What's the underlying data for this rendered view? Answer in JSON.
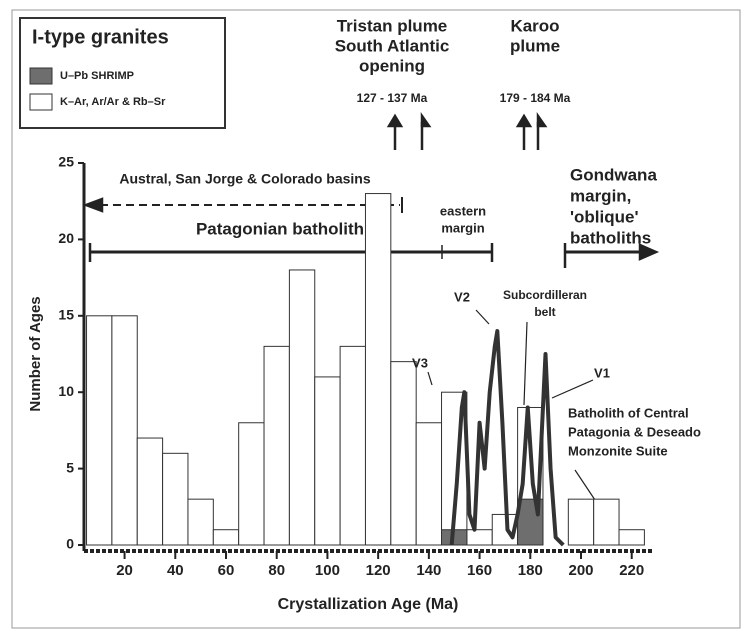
{
  "chart_data": {
    "type": "histogram",
    "legend_title": "I-type granites",
    "xlabel": "Crystallization Age (Ma)",
    "ylabel": "Number of Ages",
    "xlim": [
      4,
      228
    ],
    "ylim": [
      0,
      25
    ],
    "xticks": [
      20,
      40,
      60,
      80,
      100,
      120,
      140,
      160,
      180,
      200,
      220
    ],
    "yticks": [
      0,
      5,
      10,
      15,
      20,
      25
    ],
    "bins": [
      5,
      15,
      25,
      35,
      45,
      55,
      65,
      75,
      85,
      95,
      105,
      115,
      125,
      135,
      145,
      155,
      165,
      175,
      185,
      195,
      205,
      215,
      225
    ],
    "series": [
      {
        "name": "K–Ar, Ar/Ar & Rb–Sr",
        "color": "#ffffff",
        "values": [
          15,
          15,
          7,
          6,
          3,
          1,
          8,
          13,
          18,
          11,
          13,
          23,
          12,
          8,
          10,
          1,
          2,
          9,
          0,
          3,
          3,
          1
        ]
      },
      {
        "name": "U–Pb SHRIMP",
        "color": "#6e6e6e",
        "values": [
          0,
          0,
          0,
          0,
          0,
          0,
          0,
          0,
          0,
          0,
          0,
          0,
          0,
          0,
          1,
          0,
          0,
          3,
          0,
          0,
          0,
          0
        ]
      }
    ],
    "curve": {
      "color": "#333333",
      "x": [
        149,
        151,
        153,
        154,
        156,
        158,
        160,
        162,
        164,
        166,
        167,
        169,
        171,
        173,
        175,
        177,
        179,
        181,
        183,
        185,
        186,
        188,
        190,
        193
      ],
      "values": [
        0,
        4,
        9,
        10,
        2,
        1,
        8,
        5,
        10,
        13,
        14,
        8,
        1,
        0.5,
        2,
        4,
        9,
        4,
        2,
        9,
        12.5,
        5,
        0.5,
        0
      ]
    },
    "annotations": [
      {
        "lines": [
          "Tristan plume",
          "South Atlantic",
          "opening"
        ]
      },
      {
        "lines": [
          "127 - 137 Ma"
        ]
      },
      {
        "lines": [
          "Karoo",
          "plume"
        ]
      },
      {
        "lines": [
          "179 - 184 Ma"
        ]
      },
      {
        "lines": [
          "Gondwana",
          "margin,",
          "'oblique'",
          "batholiths"
        ]
      },
      {
        "lines": [
          "Austral, San Jorge & Colorado basins"
        ]
      },
      {
        "lines": [
          "Patagonian batholith"
        ]
      },
      {
        "lines": [
          "eastern",
          "margin"
        ]
      },
      {
        "lines": [
          "V3"
        ]
      },
      {
        "lines": [
          "V2"
        ]
      },
      {
        "lines": [
          "Subcordilleran",
          "belt"
        ]
      },
      {
        "lines": [
          "V1"
        ]
      },
      {
        "lines": [
          "Batholith of Central",
          "Patagonia & Deseado",
          "Monzonite Suite"
        ]
      }
    ]
  }
}
